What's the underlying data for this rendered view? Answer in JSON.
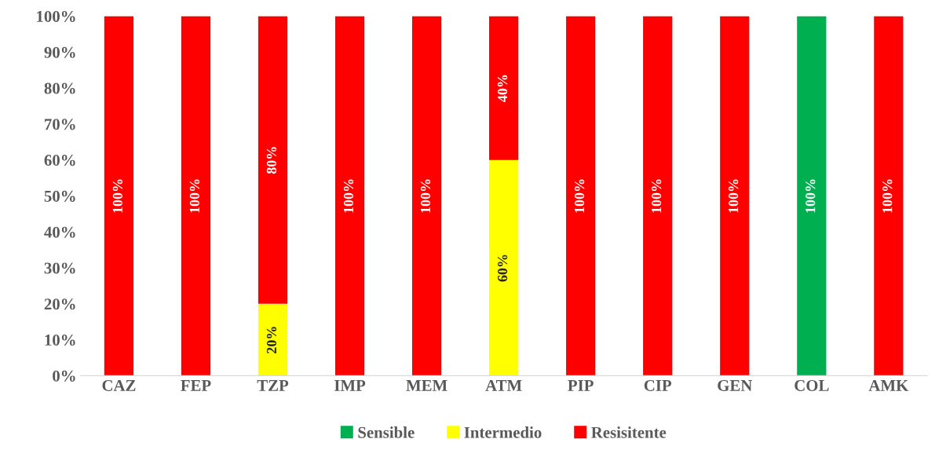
{
  "chart_data": {
    "type": "bar",
    "stacked": true,
    "categories": [
      "CAZ",
      "FEP",
      "TZP",
      "IMP",
      "MEM",
      "ATM",
      "PIP",
      "CIP",
      "GEN",
      "COL",
      "AMK"
    ],
    "series": [
      {
        "name": "Sensible",
        "color": "#00b050",
        "values": [
          0,
          0,
          0,
          0,
          0,
          0,
          0,
          0,
          0,
          100,
          0
        ],
        "value_labels": [
          null,
          null,
          null,
          null,
          null,
          null,
          null,
          null,
          null,
          "100%",
          null
        ]
      },
      {
        "name": "Intermedio",
        "color": "#ffff00",
        "values": [
          0,
          0,
          20,
          0,
          0,
          60,
          0,
          0,
          0,
          0,
          0
        ],
        "value_labels": [
          null,
          null,
          "20%",
          null,
          null,
          "60%",
          null,
          null,
          null,
          null,
          null
        ]
      },
      {
        "name": "Resisitente",
        "color": "#ff0000",
        "values": [
          100,
          100,
          80,
          100,
          100,
          40,
          100,
          100,
          100,
          0,
          100
        ],
        "value_labels": [
          "100%",
          "100%",
          "80%",
          "100%",
          "100%",
          "40%",
          "100%",
          "100%",
          "100%",
          null,
          "100%"
        ]
      }
    ],
    "ylim": [
      0,
      100
    ],
    "yticks": [
      {
        "value": 0,
        "label": "0%"
      },
      {
        "value": 10,
        "label": "10%"
      },
      {
        "value": 20,
        "label": "20%"
      },
      {
        "value": 30,
        "label": "30%"
      },
      {
        "value": 40,
        "label": "40%"
      },
      {
        "value": 50,
        "label": "50%"
      },
      {
        "value": 60,
        "label": "60%"
      },
      {
        "value": 70,
        "label": "70%"
      },
      {
        "value": 80,
        "label": "80%"
      },
      {
        "value": 90,
        "label": "90%"
      },
      {
        "value": 100,
        "label": "100%"
      }
    ],
    "grid": false,
    "legend": "bottom"
  }
}
